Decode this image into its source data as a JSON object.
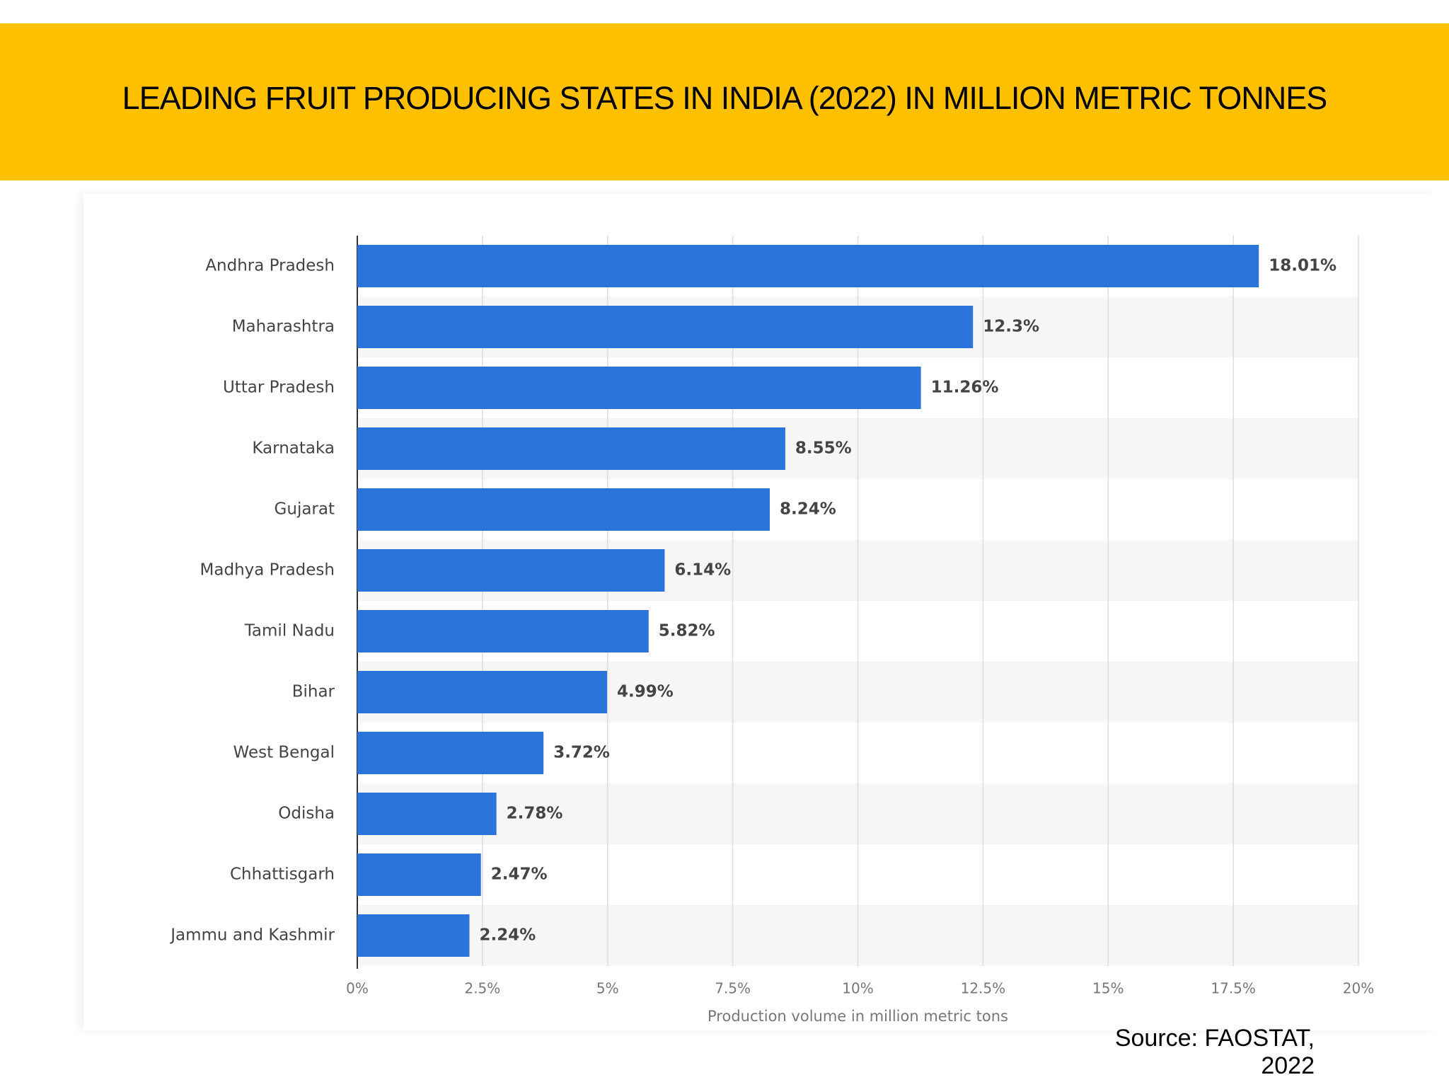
{
  "title": "LEADING FRUIT PRODUCING STATES IN INDIA (2022) IN MILLION METRIC TONNES",
  "source": "Source: FAOSTAT, 2022",
  "chart_data": {
    "type": "hbar",
    "categories": [
      "Andhra Pradesh",
      "Maharashtra",
      "Uttar Pradesh",
      "Karnataka",
      "Gujarat",
      "Madhya Pradesh",
      "Tamil Nadu",
      "Bihar",
      "West Bengal",
      "Odisha",
      "Chhattisgarh",
      "Jammu and Kashmir"
    ],
    "values": [
      18.01,
      12.3,
      11.26,
      8.55,
      8.24,
      6.14,
      5.82,
      4.99,
      3.72,
      2.78,
      2.47,
      2.24
    ],
    "value_labels": [
      "18.01%",
      "12.3%",
      "11.26%",
      "8.55%",
      "8.24%",
      "6.14%",
      "5.82%",
      "4.99%",
      "3.72%",
      "2.78%",
      "2.47%",
      "2.24%"
    ],
    "color": "#2a74db",
    "x_label": "Production volume in million metric tons",
    "xlim": [
      0,
      20
    ],
    "xticks": [
      {
        "value": 0,
        "label": "0%"
      },
      {
        "value": 2.5,
        "label": "2.5%"
      },
      {
        "value": 5,
        "label": "5%"
      },
      {
        "value": 7.5,
        "label": "7.5%"
      },
      {
        "value": 10,
        "label": "10%"
      },
      {
        "value": 12.5,
        "label": "12.5%"
      },
      {
        "value": 15,
        "label": "15%"
      },
      {
        "value": 17.5,
        "label": "17.5%"
      },
      {
        "value": 20,
        "label": "20%"
      }
    ],
    "grid": true
  }
}
